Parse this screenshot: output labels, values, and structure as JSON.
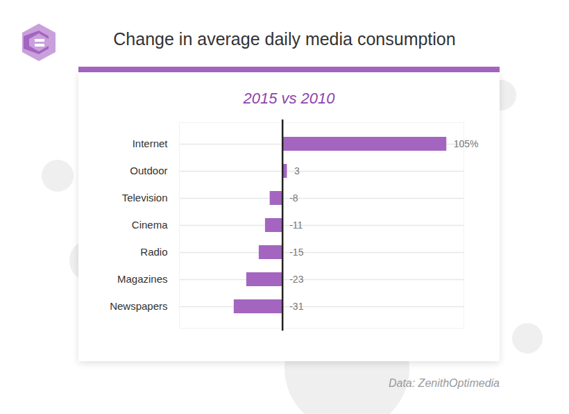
{
  "chart_data": {
    "type": "bar",
    "title": "Change in average daily media consumption",
    "subtitle": "2015 vs 2010",
    "source": "Data: ZenithOptimedia",
    "orientation": "horizontal",
    "categories": [
      "Internet",
      "Outdoor",
      "Television",
      "Cinema",
      "Radio",
      "Magazines",
      "Newspapers"
    ],
    "values": [
      105,
      3,
      -8,
      -11,
      -15,
      -23,
      -31
    ],
    "value_labels": [
      "105%",
      "3",
      "-8",
      "-11",
      "-15",
      "-23",
      "-31"
    ],
    "data_labels": true,
    "color": "#a465c0",
    "xlim": [
      -66,
      116
    ],
    "xticks": [
      0
    ],
    "grid": true,
    "tick_labels": "y"
  }
}
